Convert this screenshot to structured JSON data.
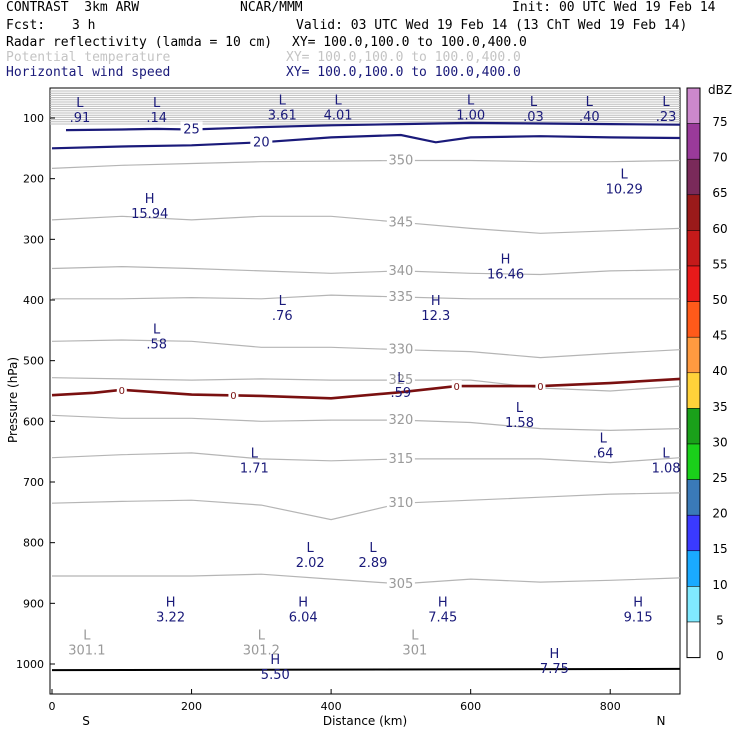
{
  "header": {
    "title_left": "CONTRAST  3km ARW",
    "title_center": "NCAR/MMM",
    "init": "Init: 00 UTC Wed 19 Feb 14",
    "fcst_label": "Fcst:",
    "fcst_value": "3 h",
    "valid": "Valid: 03 UTC Wed 19 Feb 14 (13 ChT Wed 19 Feb 14)",
    "fields": [
      {
        "name": "Radar reflectivity (lamda = 10 cm)",
        "xy": "XY= 100.0,100.0 to 100.0,400.0",
        "color": "#000000"
      },
      {
        "name": "Potential temperature",
        "xy": "XY= 100.0,100.0 to 100.0,400.0",
        "color": "#c4c4c4"
      },
      {
        "name": "Horizontal wind speed",
        "xy": "XY= 100.0,100.0 to 100.0,400.0",
        "color": "#1a1a7a"
      }
    ]
  },
  "chart_data": {
    "type": "cross-section contour",
    "xlabel": "Distance (km)",
    "ylabel": "Pressure (hPa)",
    "xlim": [
      0,
      900
    ],
    "ylim": [
      1050,
      60
    ],
    "x_ticks": [
      "0",
      "200",
      "400",
      "600",
      "800"
    ],
    "x_tick_values": [
      0,
      200,
      400,
      600,
      800
    ],
    "y_ticks": [
      "100",
      "200",
      "300",
      "400",
      "500",
      "600",
      "700",
      "800",
      "900",
      "1000"
    ],
    "y_tick_values": [
      100,
      200,
      300,
      400,
      500,
      600,
      700,
      800,
      900,
      1000
    ],
    "x_end_labels": {
      "left": "S",
      "right": "N"
    },
    "colorbar": {
      "unit": "dBZ",
      "labels": [
        "75",
        "70",
        "65",
        "60",
        "55",
        "50",
        "45",
        "40",
        "35",
        "30",
        "25",
        "20",
        "15",
        "10",
        "5",
        "0"
      ],
      "colors": [
        "#cc88cc",
        "#9a3a9a",
        "#7a2a5a",
        "#9a1a1a",
        "#c41a1a",
        "#e81a1a",
        "#ff5a1a",
        "#ff9a40",
        "#ffd23a",
        "#1aa01a",
        "#1ad01a",
        "#3a7ab8",
        "#3a3aff",
        "#1aaaff",
        "#80eaff",
        "#ffffff"
      ]
    },
    "theta_contours": [
      {
        "level": 350,
        "label": "350",
        "points": [
          [
            0,
            183
          ],
          [
            100,
            178
          ],
          [
            200,
            175
          ],
          [
            300,
            172
          ],
          [
            400,
            171
          ],
          [
            500,
            170
          ],
          [
            600,
            170
          ],
          [
            700,
            172
          ],
          [
            800,
            172
          ],
          [
            900,
            170
          ]
        ]
      },
      {
        "level": 345,
        "label": "345",
        "points": [
          [
            0,
            268
          ],
          [
            100,
            262
          ],
          [
            200,
            268
          ],
          [
            300,
            262
          ],
          [
            400,
            262
          ],
          [
            500,
            272
          ],
          [
            600,
            282
          ],
          [
            700,
            290
          ],
          [
            800,
            286
          ],
          [
            900,
            282
          ]
        ]
      },
      {
        "level": 340,
        "label": "340",
        "points": [
          [
            0,
            348
          ],
          [
            100,
            345
          ],
          [
            200,
            348
          ],
          [
            300,
            352
          ],
          [
            400,
            356
          ],
          [
            500,
            352
          ],
          [
            600,
            356
          ],
          [
            700,
            358
          ],
          [
            800,
            352
          ],
          [
            900,
            350
          ]
        ]
      },
      {
        "level": 335,
        "label": "335",
        "points": [
          [
            0,
            398
          ],
          [
            100,
            398
          ],
          [
            200,
            396
          ],
          [
            300,
            398
          ],
          [
            400,
            392
          ],
          [
            500,
            395
          ],
          [
            600,
            398
          ],
          [
            700,
            398
          ],
          [
            800,
            398
          ],
          [
            900,
            398
          ]
        ]
      },
      {
        "level": 330,
        "label": "330",
        "points": [
          [
            0,
            468
          ],
          [
            100,
            466
          ],
          [
            200,
            468
          ],
          [
            300,
            478
          ],
          [
            400,
            478
          ],
          [
            500,
            482
          ],
          [
            600,
            485
          ],
          [
            700,
            495
          ],
          [
            800,
            488
          ],
          [
            900,
            482
          ]
        ]
      },
      {
        "level": 325,
        "label": "325",
        "points": [
          [
            0,
            528
          ],
          [
            100,
            530
          ],
          [
            200,
            532
          ],
          [
            300,
            530
          ],
          [
            400,
            532
          ],
          [
            500,
            532
          ],
          [
            600,
            532
          ],
          [
            700,
            545
          ],
          [
            800,
            550
          ],
          [
            900,
            542
          ]
        ]
      },
      {
        "level": 320,
        "label": "320",
        "points": [
          [
            0,
            590
          ],
          [
            100,
            595
          ],
          [
            200,
            595
          ],
          [
            300,
            600
          ],
          [
            400,
            598
          ],
          [
            500,
            598
          ],
          [
            600,
            602
          ],
          [
            700,
            612
          ],
          [
            800,
            615
          ],
          [
            900,
            612
          ]
        ]
      },
      {
        "level": 315,
        "label": "315",
        "points": [
          [
            0,
            660
          ],
          [
            100,
            655
          ],
          [
            200,
            652
          ],
          [
            300,
            662
          ],
          [
            400,
            665
          ],
          [
            500,
            662
          ],
          [
            600,
            662
          ],
          [
            700,
            662
          ],
          [
            800,
            668
          ],
          [
            900,
            660
          ]
        ]
      },
      {
        "level": 310,
        "label": "310",
        "points": [
          [
            0,
            735
          ],
          [
            100,
            732
          ],
          [
            200,
            730
          ],
          [
            300,
            738
          ],
          [
            400,
            762
          ],
          [
            500,
            735
          ],
          [
            600,
            730
          ],
          [
            700,
            725
          ],
          [
            800,
            720
          ],
          [
            900,
            718
          ]
        ]
      },
      {
        "level": 305,
        "label": "305",
        "points": [
          [
            0,
            855
          ],
          [
            100,
            855
          ],
          [
            200,
            855
          ],
          [
            300,
            852
          ],
          [
            400,
            860
          ],
          [
            500,
            868
          ],
          [
            600,
            860
          ],
          [
            700,
            865
          ],
          [
            800,
            862
          ],
          [
            900,
            858
          ]
        ]
      }
    ],
    "wind_contours": [
      {
        "level": 25,
        "label": "25",
        "points": [
          [
            20,
            120
          ],
          [
            100,
            119
          ],
          [
            150,
            118
          ],
          [
            200,
            119
          ],
          [
            300,
            115
          ],
          [
            400,
            112
          ],
          [
            500,
            110
          ],
          [
            600,
            108
          ],
          [
            700,
            109
          ],
          [
            800,
            110
          ],
          [
            900,
            111
          ]
        ]
      },
      {
        "level": 20,
        "label": "20",
        "points": [
          [
            0,
            150
          ],
          [
            100,
            147
          ],
          [
            200,
            145
          ],
          [
            300,
            140
          ],
          [
            400,
            132
          ],
          [
            500,
            128
          ],
          [
            550,
            140
          ],
          [
            600,
            132
          ],
          [
            700,
            130
          ],
          [
            800,
            132
          ],
          [
            900,
            133
          ]
        ]
      }
    ],
    "freezing_line": {
      "level": 0,
      "label": "0",
      "points": [
        [
          0,
          557
        ],
        [
          60,
          553
        ],
        [
          100,
          548
        ],
        [
          200,
          556
        ],
        [
          300,
          558
        ],
        [
          400,
          562
        ],
        [
          500,
          552
        ],
        [
          580,
          542
        ],
        [
          700,
          542
        ],
        [
          800,
          537
        ],
        [
          900,
          530
        ]
      ]
    },
    "surface_line": {
      "points": [
        [
          0,
          1010
        ],
        [
          900,
          1008
        ]
      ]
    },
    "extrema": [
      {
        "type": "L",
        "value": ".91",
        "x": 40,
        "p": 82
      },
      {
        "type": "L",
        "value": ".14",
        "x": 150,
        "p": 82
      },
      {
        "type": "L",
        "value": "3.61",
        "x": 330,
        "p": 78
      },
      {
        "type": "L",
        "value": "4.01",
        "x": 410,
        "p": 78
      },
      {
        "type": "L",
        "value": "1.00",
        "x": 600,
        "p": 78
      },
      {
        "type": "L",
        "value": ".03",
        "x": 690,
        "p": 80
      },
      {
        "type": "L",
        "value": ".40",
        "x": 770,
        "p": 80
      },
      {
        "type": "L",
        "value": ".23",
        "x": 880,
        "p": 80
      },
      {
        "type": "H",
        "value": "15.94",
        "x": 140,
        "p": 240
      },
      {
        "type": "L",
        "value": "10.29",
        "x": 820,
        "p": 200
      },
      {
        "type": "H",
        "value": "16.46",
        "x": 650,
        "p": 340
      },
      {
        "type": "L",
        "value": ".76",
        "x": 330,
        "p": 408
      },
      {
        "type": "H",
        "value": "12.3",
        "x": 550,
        "p": 408
      },
      {
        "type": "L",
        "value": ".58",
        "x": 150,
        "p": 455
      },
      {
        "type": "L",
        "value": ".59",
        "x": 500,
        "p": 535
      },
      {
        "type": "L",
        "value": "1.58",
        "x": 670,
        "p": 585
      },
      {
        "type": "L",
        "value": ".64",
        "x": 790,
        "p": 635
      },
      {
        "type": "L",
        "value": "1.71",
        "x": 290,
        "p": 660
      },
      {
        "type": "L",
        "value": "1.08",
        "x": 880,
        "p": 660
      },
      {
        "type": "L",
        "value": "2.02",
        "x": 370,
        "p": 815
      },
      {
        "type": "L",
        "value": "2.89",
        "x": 460,
        "p": 815
      },
      {
        "type": "H",
        "value": "3.22",
        "x": 170,
        "p": 905
      },
      {
        "type": "H",
        "value": "6.04",
        "x": 360,
        "p": 905
      },
      {
        "type": "H",
        "value": "7.45",
        "x": 560,
        "p": 905
      },
      {
        "type": "H",
        "value": "9.15",
        "x": 840,
        "p": 905
      },
      {
        "type": "L",
        "value": "301.1",
        "x": 50,
        "p": 960
      },
      {
        "type": "L",
        "value": "301.2",
        "x": 300,
        "p": 960
      },
      {
        "type": "L",
        "value": "301",
        "x": 520,
        "p": 960
      },
      {
        "type": "H",
        "value": "5.50",
        "x": 320,
        "p": 1000
      },
      {
        "type": "H",
        "value": "7.75",
        "x": 720,
        "p": 990
      }
    ]
  }
}
